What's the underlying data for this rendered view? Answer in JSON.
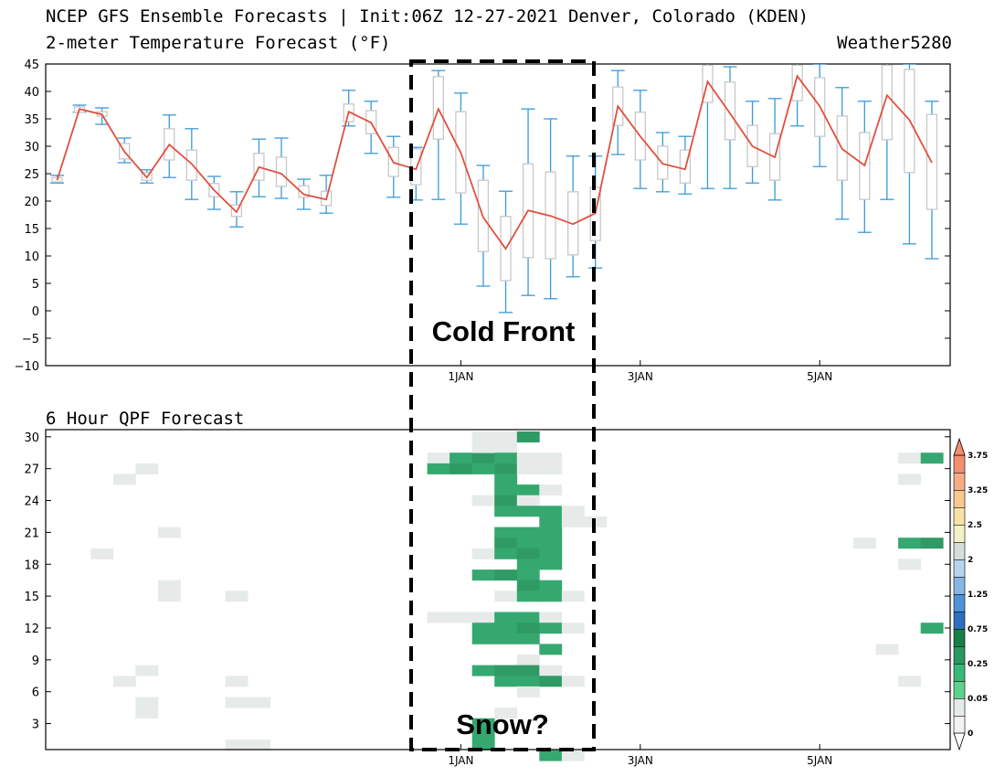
{
  "header": {
    "title_line1": "NCEP GFS Ensemble Forecasts | Init:06Z 12-27-2021 Denver, Colorado (KDEN)",
    "title_line2": "2-meter Temperature Forecast (°F)",
    "credit": "Weather5280",
    "qpf_title": "6 Hour QPF Forecast"
  },
  "annotations": {
    "cold_front": "Cold Front",
    "snow": "Snow?"
  },
  "colors": {
    "mean_line": "#e05040",
    "whisker": "#3a9ad9",
    "box": "#c8c8c8",
    "dashed_box": "#000000"
  },
  "chart_data": [
    {
      "type": "box",
      "title": "2-meter Temperature Forecast (°F)",
      "ylim": [
        -10,
        45
      ],
      "yticks": [
        -10,
        -5,
        0,
        5,
        10,
        15,
        20,
        25,
        30,
        35,
        40,
        45
      ],
      "xticks": [
        {
          "label": "1JAN",
          "index": 18
        },
        {
          "label": "3JAN",
          "index": 26
        },
        {
          "label": "5JAN",
          "index": 34
        }
      ],
      "time_step_hours": 6,
      "first_time": "06Z 12-27-2021",
      "mean": [
        23.8,
        36.8,
        35.8,
        29,
        24.3,
        30.3,
        26.8,
        22,
        18,
        26.2,
        25,
        21.2,
        20.3,
        36.3,
        34.3,
        27,
        25.8,
        36.8,
        28.8,
        17,
        11.3,
        18.3,
        17.3,
        15.8,
        17.8,
        37.3,
        31.8,
        26.8,
        25.8,
        41.8,
        36,
        30,
        28,
        42.8,
        37.3,
        29.5,
        26.5,
        39.3,
        34.8,
        27
      ],
      "whisker_min": [
        23.3,
        36.2,
        34,
        27,
        23.3,
        24.3,
        20.3,
        18.5,
        15.3,
        20.8,
        20.5,
        18.5,
        17.8,
        33.7,
        28.7,
        20.7,
        20.2,
        20.3,
        15.8,
        4.5,
        -0.3,
        2.8,
        2.2,
        6.2,
        7.8,
        28.5,
        22.3,
        21.7,
        21.3,
        22.3,
        22.3,
        23.3,
        20.2,
        33.7,
        26.3,
        16.7,
        14.3,
        20.3,
        12.2,
        9.5
      ],
      "whisker_max": [
        24.7,
        37.5,
        37,
        31.5,
        25.7,
        35.7,
        33.2,
        24.5,
        21.7,
        31.3,
        31.5,
        24,
        24.7,
        40.2,
        38.2,
        31.8,
        29.8,
        43.8,
        39.7,
        26.5,
        21.8,
        36.8,
        35,
        28.2,
        28.2,
        43.8,
        40.2,
        32.5,
        31.8,
        46,
        44.5,
        38.2,
        38.7,
        46,
        45,
        40.7,
        38.2,
        46,
        45,
        38.2
      ],
      "box_low": [
        23.5,
        36.2,
        35.5,
        27.7,
        23.8,
        27.5,
        23.8,
        20.8,
        17.2,
        23.8,
        22.7,
        20.7,
        19.2,
        34.5,
        32.3,
        24.5,
        23,
        31.3,
        21.5,
        10.8,
        5.5,
        9.7,
        9.5,
        10.2,
        12.8,
        33.8,
        27.5,
        24,
        23.3,
        38,
        31.2,
        26.3,
        23.8,
        38.3,
        31.8,
        23.8,
        20.3,
        31.2,
        25.2,
        18.5
      ],
      "box_high": [
        24.3,
        37.2,
        36.3,
        30.5,
        25.2,
        33.2,
        29.3,
        23.2,
        19.3,
        28.7,
        28,
        22.8,
        21.8,
        37.7,
        36.5,
        29.8,
        29.5,
        42.7,
        36.3,
        23.8,
        17.2,
        26.8,
        25.3,
        21.7,
        22.5,
        40.8,
        36.2,
        30,
        29.3,
        44.8,
        41.7,
        33.8,
        32.3,
        44.8,
        42.5,
        35.5,
        32.5,
        44.8,
        44,
        35.8
      ]
    },
    {
      "type": "heatmap",
      "title": "6 Hour QPF Forecast",
      "yticks": [
        3,
        6,
        9,
        12,
        15,
        18,
        21,
        24,
        27,
        30
      ],
      "ylim": [
        0.5,
        30.5
      ],
      "xticks": [
        {
          "label": "1JAN",
          "index": 18
        },
        {
          "label": "3JAN",
          "index": 26
        },
        {
          "label": "5JAN",
          "index": 34
        }
      ],
      "colorbar_labels": [
        "0",
        "0.05",
        "0.25",
        "0.75",
        "1.25",
        "2",
        "2.5",
        "3.25",
        "3.75"
      ],
      "colorbar_colors": [
        "#f2f2f2",
        "#e3ece8",
        "#5fd08e",
        "#38b878",
        "#2a9960",
        "#1a7e48",
        "#2e6fc0",
        "#4f93d6",
        "#86b7e3",
        "#b7d4ef",
        "#d6ddd9",
        "#f2f2c6",
        "#f7e2a6",
        "#f8c98f",
        "#f6ad86",
        "#f38e6f"
      ],
      "cells": [
        [
          4,
          27,
          0
        ],
        [
          3,
          26,
          0
        ],
        [
          5,
          21,
          0
        ],
        [
          2,
          19,
          0
        ],
        [
          5,
          16,
          0
        ],
        [
          5,
          15,
          0
        ],
        [
          8,
          15,
          0
        ],
        [
          3,
          7,
          0
        ],
        [
          4,
          8,
          0
        ],
        [
          8,
          7,
          0
        ],
        [
          4,
          5,
          0
        ],
        [
          4,
          4,
          0
        ],
        [
          8,
          5,
          0
        ],
        [
          9,
          5,
          0
        ],
        [
          8,
          1,
          0
        ],
        [
          9,
          1,
          0
        ],
        [
          17,
          28,
          0
        ],
        [
          17,
          27,
          2
        ],
        [
          18,
          27,
          3
        ],
        [
          18,
          28,
          2
        ],
        [
          19,
          28,
          3
        ],
        [
          19,
          29,
          4
        ],
        [
          19,
          30,
          4
        ],
        [
          20,
          29,
          4
        ],
        [
          20,
          30,
          4
        ],
        [
          21,
          30,
          3
        ],
        [
          20,
          27,
          3
        ],
        [
          20,
          28,
          2
        ],
        [
          21,
          27,
          0
        ],
        [
          22,
          27,
          0
        ],
        [
          21,
          28,
          0
        ],
        [
          22,
          28,
          0
        ],
        [
          19,
          27,
          2
        ],
        [
          20,
          26,
          2
        ],
        [
          20,
          25,
          2
        ],
        [
          21,
          25,
          2
        ],
        [
          22,
          25,
          0
        ],
        [
          19,
          24,
          0
        ],
        [
          20,
          24,
          3
        ],
        [
          21,
          24,
          0
        ],
        [
          20,
          23,
          2
        ],
        [
          21,
          23,
          2
        ],
        [
          22,
          23,
          2
        ],
        [
          23,
          23,
          0
        ],
        [
          22,
          22,
          2
        ],
        [
          23,
          22,
          0
        ],
        [
          24,
          22,
          0
        ],
        [
          20,
          21,
          2
        ],
        [
          21,
          21,
          2
        ],
        [
          22,
          21,
          2
        ],
        [
          20,
          20,
          3
        ],
        [
          21,
          20,
          2
        ],
        [
          22,
          20,
          2
        ],
        [
          19,
          19,
          0
        ],
        [
          20,
          19,
          2
        ],
        [
          21,
          19,
          3
        ],
        [
          22,
          19,
          2
        ],
        [
          21,
          18,
          2
        ],
        [
          22,
          18,
          2
        ],
        [
          19,
          17,
          2
        ],
        [
          20,
          17,
          3
        ],
        [
          21,
          17,
          2
        ],
        [
          21,
          16,
          3
        ],
        [
          22,
          16,
          2
        ],
        [
          20,
          15,
          0
        ],
        [
          21,
          15,
          2
        ],
        [
          22,
          15,
          2
        ],
        [
          23,
          15,
          0
        ],
        [
          17,
          13,
          0
        ],
        [
          18,
          13,
          0
        ],
        [
          19,
          13,
          0
        ],
        [
          20,
          13,
          2
        ],
        [
          21,
          13,
          2
        ],
        [
          22,
          13,
          0
        ],
        [
          19,
          12,
          2
        ],
        [
          19,
          11,
          2
        ],
        [
          20,
          12,
          2
        ],
        [
          21,
          12,
          3
        ],
        [
          22,
          12,
          2
        ],
        [
          23,
          12,
          0
        ],
        [
          20,
          11,
          2
        ],
        [
          21,
          11,
          2
        ],
        [
          22,
          10,
          2
        ],
        [
          21,
          9,
          0
        ],
        [
          19,
          8,
          2
        ],
        [
          20,
          8,
          3
        ],
        [
          21,
          8,
          3
        ],
        [
          22,
          8,
          0
        ],
        [
          20,
          7,
          2
        ],
        [
          21,
          7,
          2
        ],
        [
          22,
          7,
          3
        ],
        [
          23,
          7,
          0
        ],
        [
          21,
          6,
          0
        ],
        [
          19,
          3,
          2
        ],
        [
          19,
          2,
          2
        ],
        [
          19,
          1,
          2
        ],
        [
          20,
          4,
          0
        ],
        [
          22,
          0,
          2
        ],
        [
          23,
          0,
          0
        ],
        [
          38,
          28,
          0
        ],
        [
          39,
          28,
          2
        ],
        [
          38,
          26,
          0
        ],
        [
          36,
          20,
          0
        ],
        [
          38,
          20,
          2
        ],
        [
          39,
          20,
          3
        ],
        [
          38,
          18,
          0
        ],
        [
          37,
          10,
          0
        ],
        [
          39,
          12,
          2
        ],
        [
          38,
          7,
          0
        ]
      ]
    }
  ]
}
